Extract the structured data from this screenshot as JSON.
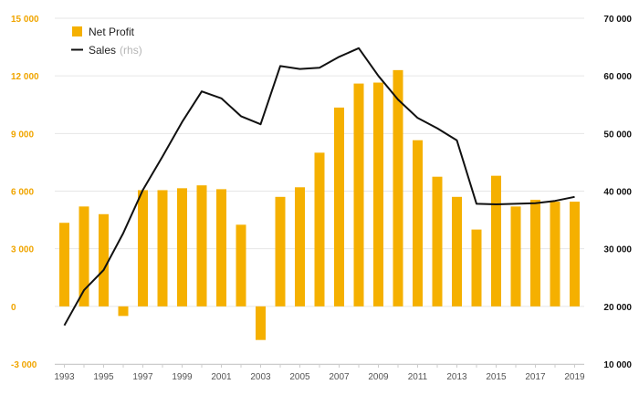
{
  "chart_data": {
    "type": "bar",
    "title": "",
    "xlabel": "",
    "ylabel": "",
    "grid": true,
    "legend_position": "top-left",
    "x": [
      1993,
      1994,
      1995,
      1996,
      1997,
      1998,
      1999,
      2000,
      2001,
      2002,
      2003,
      2004,
      2005,
      2006,
      2007,
      2008,
      2009,
      2010,
      2011,
      2012,
      2013,
      2014,
      2015,
      2016,
      2017,
      2018,
      2019
    ],
    "x_tick_labels": [
      "1993",
      "1995",
      "1997",
      "1999",
      "2001",
      "2003",
      "2005",
      "2007",
      "2009",
      "2011",
      "2013",
      "2015",
      "2017",
      "2019"
    ],
    "y_left": {
      "lim": [
        -3000,
        15000
      ],
      "ticks": [
        -3000,
        0,
        3000,
        6000,
        9000,
        12000,
        15000
      ],
      "tick_labels": [
        "-3 000",
        "0",
        "3 000",
        "6 000",
        "9 000",
        "12 000",
        "15 000"
      ]
    },
    "y_right": {
      "lim": [
        10000,
        70000
      ],
      "ticks": [
        10000,
        20000,
        30000,
        40000,
        50000,
        60000,
        70000
      ],
      "tick_labels": [
        "10 000",
        "20 000",
        "30 000",
        "40 000",
        "50 000",
        "60 000",
        "70 000"
      ]
    },
    "series": [
      {
        "name": "Net Profit",
        "type": "bar",
        "axis": "left",
        "color": "#f5b000",
        "values": [
          4350,
          5200,
          4800,
          -500,
          6050,
          6050,
          6150,
          6300,
          6100,
          4250,
          -1750,
          5700,
          6200,
          8000,
          10350,
          11600,
          11650,
          12300,
          8650,
          6750,
          5700,
          4000,
          6800,
          5200,
          5550,
          5450,
          5450
        ]
      },
      {
        "name": "Sales",
        "name_suffix": "(rhs)",
        "type": "line",
        "axis": "right",
        "color": "#111111",
        "values": [
          16700,
          22800,
          26300,
          32700,
          40200,
          46000,
          52000,
          57300,
          56100,
          53000,
          51600,
          61700,
          61200,
          61400,
          63300,
          64800,
          60000,
          55900,
          52700,
          50900,
          48800,
          37800,
          37700,
          37800,
          37900,
          38300,
          39000
        ]
      }
    ]
  }
}
